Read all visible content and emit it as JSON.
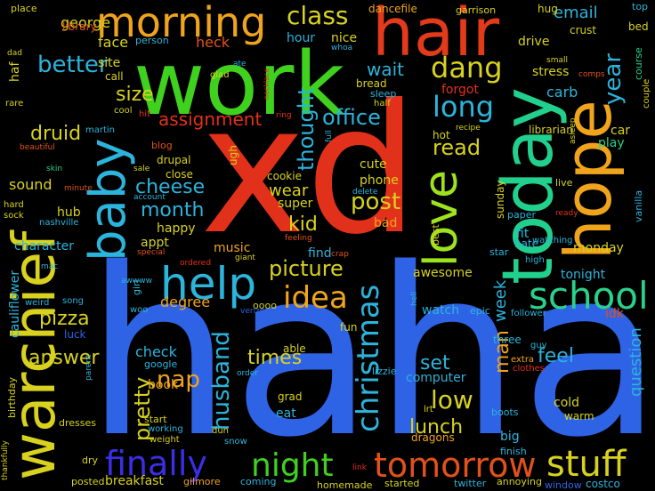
{
  "words": [
    {
      "text": "haha",
      "color": "#2f63e6"
    },
    {
      "text": "xd",
      "color": "#e2311a"
    },
    {
      "text": "work",
      "color": "#3fd11e"
    },
    {
      "text": "warchief",
      "color": "#d8d21f"
    },
    {
      "text": "hair",
      "color": "#e23a1a"
    },
    {
      "text": "today",
      "color": "#22d08d"
    },
    {
      "text": "hope",
      "color": "#f0a41c"
    },
    {
      "text": "morning",
      "color": "#f0a41c"
    },
    {
      "text": "baby",
      "color": "#2bb4dc"
    },
    {
      "text": "love",
      "color": "#9ee21d"
    },
    {
      "text": "help",
      "color": "#2bb4dc"
    },
    {
      "text": "school",
      "color": "#29d18a"
    },
    {
      "text": "stuff",
      "color": "#d8d21f"
    },
    {
      "text": "tomorrow",
      "color": "#e2511a"
    },
    {
      "text": "finally",
      "color": "#3a2fe6"
    },
    {
      "text": "night",
      "color": "#3fd11e"
    },
    {
      "text": "christmas",
      "color": "#2bb4dc"
    },
    {
      "text": "idea",
      "color": "#f0a41c"
    },
    {
      "text": "dang",
      "color": "#d8d21f"
    },
    {
      "text": "long",
      "color": "#2bb4dc"
    },
    {
      "text": "class",
      "color": "#d8d21f"
    },
    {
      "text": "better",
      "color": "#2bb4dc"
    },
    {
      "text": "office",
      "color": "#2bb4dc"
    },
    {
      "text": "post",
      "color": "#d8d21f"
    },
    {
      "text": "husband",
      "color": "#2bb4dc"
    },
    {
      "text": "pretty",
      "color": "#d8d21f"
    },
    {
      "text": "year",
      "color": "#2bb4dc"
    },
    {
      "text": "thought",
      "color": "#2bb4dc"
    },
    {
      "text": "read",
      "color": "#d8d21f"
    },
    {
      "text": "kid",
      "color": "#d8d21f"
    },
    {
      "text": "picture",
      "color": "#d8d21f"
    },
    {
      "text": "size",
      "color": "#d8d21f"
    },
    {
      "text": "cheese",
      "color": "#2bb4dc"
    },
    {
      "text": "month",
      "color": "#2bb4dc"
    },
    {
      "text": "assignment",
      "color": "#e2311a"
    },
    {
      "text": "druid",
      "color": "#d8d21f"
    },
    {
      "text": "pizza",
      "color": "#d8d21f"
    },
    {
      "text": "answer",
      "color": "#d8d21f"
    },
    {
      "text": "nap",
      "color": "#f0a41c"
    },
    {
      "text": "times",
      "color": "#d8d21f"
    },
    {
      "text": "low",
      "color": "#d8d21f"
    },
    {
      "text": "lunch",
      "color": "#d8d21f"
    },
    {
      "text": "set",
      "color": "#2bb4dc"
    },
    {
      "text": "feel",
      "color": "#2bb4dc"
    },
    {
      "text": "man",
      "color": "#f0a41c"
    },
    {
      "text": "week",
      "color": "#2bb4dc"
    },
    {
      "text": "question",
      "color": "#2bb4dc"
    },
    {
      "text": "wear",
      "color": "#d8d21f"
    },
    {
      "text": "wait",
      "color": "#2bb4dc"
    },
    {
      "text": "email",
      "color": "#2bb4dc"
    },
    {
      "text": "george",
      "color": "#d8d21f"
    },
    {
      "text": "face",
      "color": "#d8d21f"
    },
    {
      "text": "heck",
      "color": "#e2511a"
    },
    {
      "text": "hour",
      "color": "#2bb4dc"
    },
    {
      "text": "nice",
      "color": "#d8d21f"
    },
    {
      "text": "drive",
      "color": "#d8d21f"
    },
    {
      "text": "stress",
      "color": "#d8d21f"
    },
    {
      "text": "carb",
      "color": "#2bb4dc"
    },
    {
      "text": "forgot",
      "color": "#e2311a"
    },
    {
      "text": "sleep",
      "color": "#2bb4dc"
    },
    {
      "text": "bread",
      "color": "#d8d21f"
    },
    {
      "text": "hot",
      "color": "#d8d21f"
    },
    {
      "text": "car",
      "color": "#d8d21f"
    },
    {
      "text": "play",
      "color": "#29d18a"
    },
    {
      "text": "sound",
      "color": "#d8d21f"
    },
    {
      "text": "hub",
      "color": "#d8d21f"
    },
    {
      "text": "happy",
      "color": "#d8d21f"
    },
    {
      "text": "appt",
      "color": "#d8d21f"
    },
    {
      "text": "music",
      "color": "#f0a41c"
    },
    {
      "text": "degree",
      "color": "#f0a41c"
    },
    {
      "text": "check",
      "color": "#2bb4dc"
    },
    {
      "text": "book",
      "color": "#f0a41c"
    },
    {
      "text": "awesome",
      "color": "#d8d21f"
    },
    {
      "text": "tonight",
      "color": "#2bb4dc"
    },
    {
      "text": "watch",
      "color": "#2bb4dc"
    },
    {
      "text": "cold",
      "color": "#d8d21f"
    },
    {
      "text": "computer",
      "color": "#2bb4dc"
    },
    {
      "text": "dragons",
      "color": "#f0a41c"
    },
    {
      "text": "eat",
      "color": "#2bb4dc"
    },
    {
      "text": "grad",
      "color": "#d8d21f"
    },
    {
      "text": "breakfast",
      "color": "#d8d21f"
    },
    {
      "text": "cookie",
      "color": "#d8d21f"
    },
    {
      "text": "super",
      "color": "#d8d21f"
    },
    {
      "text": "phone",
      "color": "#d8d21f"
    },
    {
      "text": "cute",
      "color": "#d8d21f"
    },
    {
      "text": "find",
      "color": "#2bb4dc"
    },
    {
      "text": "bad",
      "color": "#f0a41c"
    },
    {
      "text": "fit",
      "color": "#2bb4dc"
    },
    {
      "text": "hate",
      "color": "#2bb4dc"
    },
    {
      "text": "monday",
      "color": "#d8d21f"
    },
    {
      "text": "sunday",
      "color": "#d8d21f"
    },
    {
      "text": "character",
      "color": "#2bb4dc"
    },
    {
      "text": "cauliflower",
      "color": "#2bb4dc"
    },
    {
      "text": "three",
      "color": "#2bb4dc"
    },
    {
      "text": "big",
      "color": "#2bb4dc"
    },
    {
      "text": "warm",
      "color": "#d8d21f"
    },
    {
      "text": "idk",
      "color": "#e2511a"
    },
    {
      "text": "librarian",
      "color": "#d8d21f"
    },
    {
      "text": "dancefile",
      "color": "#f0a41c"
    },
    {
      "text": "library",
      "color": "#e2511a"
    },
    {
      "text": "haf",
      "color": "#d8d21f"
    },
    {
      "text": "site",
      "color": "#d8d21f"
    },
    {
      "text": "call",
      "color": "#d8d21f"
    },
    {
      "text": "person",
      "color": "#2bb4dc"
    },
    {
      "text": "place",
      "color": "#d8d21f"
    },
    {
      "text": "garrison",
      "color": "#d8d21f"
    },
    {
      "text": "hug",
      "color": "#d8d21f"
    },
    {
      "text": "top",
      "color": "#2bb4dc"
    },
    {
      "text": "crust",
      "color": "#d8d21f"
    },
    {
      "text": "bed",
      "color": "#d8d21f"
    },
    {
      "text": "course",
      "color": "#29d18a"
    },
    {
      "text": "couple",
      "color": "#d8d21f"
    },
    {
      "text": "small",
      "color": "#d8d21f"
    },
    {
      "text": "comps",
      "color": "#e2511a"
    },
    {
      "text": "blog",
      "color": "#e2511a"
    },
    {
      "text": "drupal",
      "color": "#d8d21f"
    },
    {
      "text": "close",
      "color": "#d8d21f"
    },
    {
      "text": "vanilla",
      "color": "#2bb4dc"
    },
    {
      "text": "live",
      "color": "#d8d21f"
    },
    {
      "text": "paper",
      "color": "#2bb4dc"
    },
    {
      "text": "ready",
      "color": "#e2311a"
    },
    {
      "text": "watching",
      "color": "#2bb4dc"
    },
    {
      "text": "high",
      "color": "#2bb4dc"
    },
    {
      "text": "star",
      "color": "#2bb4dc"
    },
    {
      "text": "guy",
      "color": "#2bb4dc"
    },
    {
      "text": "best",
      "color": "#d8d21f"
    },
    {
      "text": "ugh",
      "color": "#d8d21f"
    },
    {
      "text": "clothes",
      "color": "#e2311a"
    },
    {
      "text": "lizzie",
      "color": "#2bb4dc"
    },
    {
      "text": "fun",
      "color": "#d8d21f"
    },
    {
      "text": "able",
      "color": "#d8d21f"
    },
    {
      "text": "follower",
      "color": "#2bb4dc"
    },
    {
      "text": "epic",
      "color": "#2bb4dc"
    },
    {
      "text": "extra",
      "color": "#f0a41c"
    },
    {
      "text": "finish",
      "color": "#2bb4dc"
    },
    {
      "text": "boots",
      "color": "#2bb4dc"
    },
    {
      "text": "costco",
      "color": "#2bb4dc"
    },
    {
      "text": "window",
      "color": "#2f63e6"
    },
    {
      "text": "annoying",
      "color": "#d8d21f"
    },
    {
      "text": "twitter",
      "color": "#2bb4dc"
    },
    {
      "text": "started",
      "color": "#d8d21f"
    },
    {
      "text": "homemade",
      "color": "#d8d21f"
    },
    {
      "text": "coming",
      "color": "#2bb4dc"
    },
    {
      "text": "gilmore",
      "color": "#f0a41c"
    },
    {
      "text": "posted",
      "color": "#d8d21f"
    },
    {
      "text": "dry",
      "color": "#d8d21f"
    },
    {
      "text": "weight",
      "color": "#d8d21f"
    },
    {
      "text": "start",
      "color": "#d8d21f"
    },
    {
      "text": "google",
      "color": "#2bb4dc"
    },
    {
      "text": "snow",
      "color": "#2bb4dc"
    },
    {
      "text": "dun",
      "color": "#d8d21f"
    },
    {
      "text": "dresses",
      "color": "#d8d21f"
    },
    {
      "text": "luck",
      "color": "#2f63e6"
    },
    {
      "text": "birthday",
      "color": "#d8d21f"
    },
    {
      "text": "thankfully",
      "color": "#d8d21f"
    },
    {
      "text": "song",
      "color": "#2bb4dc"
    },
    {
      "text": "weird",
      "color": "#2bb4dc"
    },
    {
      "text": "woo",
      "color": "#2bb4dc"
    },
    {
      "text": "mac",
      "color": "#2bb4dc"
    },
    {
      "text": "nashville",
      "color": "#2bb4dc"
    },
    {
      "text": "hard",
      "color": "#d8d21f"
    },
    {
      "text": "sock",
      "color": "#d8d21f"
    },
    {
      "text": "skin",
      "color": "#29d18a"
    },
    {
      "text": "minute",
      "color": "#e2511a"
    },
    {
      "text": "beautiful",
      "color": "#e2511a"
    },
    {
      "text": "martin",
      "color": "#2bb4dc"
    },
    {
      "text": "rare",
      "color": "#d8d21f"
    },
    {
      "text": "dad",
      "color": "#d8d21f"
    },
    {
      "text": "cool",
      "color": "#d8d21f"
    },
    {
      "text": "hit",
      "color": "#e2311a"
    },
    {
      "text": "sale",
      "color": "#d8d21f"
    },
    {
      "text": "account",
      "color": "#2bb4dc"
    },
    {
      "text": "special",
      "color": "#e2511a"
    },
    {
      "text": "ordered",
      "color": "#e2311a"
    },
    {
      "text": "giant",
      "color": "#d8d21f"
    },
    {
      "text": "awwww",
      "color": "#2bb4dc"
    },
    {
      "text": "girl",
      "color": "#2bb4dc"
    },
    {
      "text": "oooo",
      "color": "#d8d21f"
    },
    {
      "text": "verizon",
      "color": "#2f63e6"
    },
    {
      "text": "feeling",
      "color": "#e2511a"
    },
    {
      "text": "crap",
      "color": "#e2511a"
    },
    {
      "text": "delete",
      "color": "#2bb4dc"
    },
    {
      "text": "recipe",
      "color": "#d8d21f"
    },
    {
      "text": "asleep",
      "color": "#d8d21f"
    },
    {
      "text": "ring",
      "color": "#e2311a"
    },
    {
      "text": "half",
      "color": "#d8d21f"
    },
    {
      "text": "glad",
      "color": "#d8d21f"
    },
    {
      "text": "ate",
      "color": "#2bb4dc"
    },
    {
      "text": "necklace",
      "color": "#e2311a"
    },
    {
      "text": "whoa",
      "color": "#2bb4dc"
    },
    {
      "text": "full",
      "color": "#2bb4dc"
    },
    {
      "text": "lrt",
      "color": "#d8d21f"
    },
    {
      "text": "order",
      "color": "#2bb4dc"
    },
    {
      "text": "hell",
      "color": "#2bb4dc"
    },
    {
      "text": "link",
      "color": "#e2311a"
    },
    {
      "text": "parent",
      "color": "#2bb4dc"
    },
    {
      "text": "working",
      "color": "#2bb4dc"
    }
  ]
}
